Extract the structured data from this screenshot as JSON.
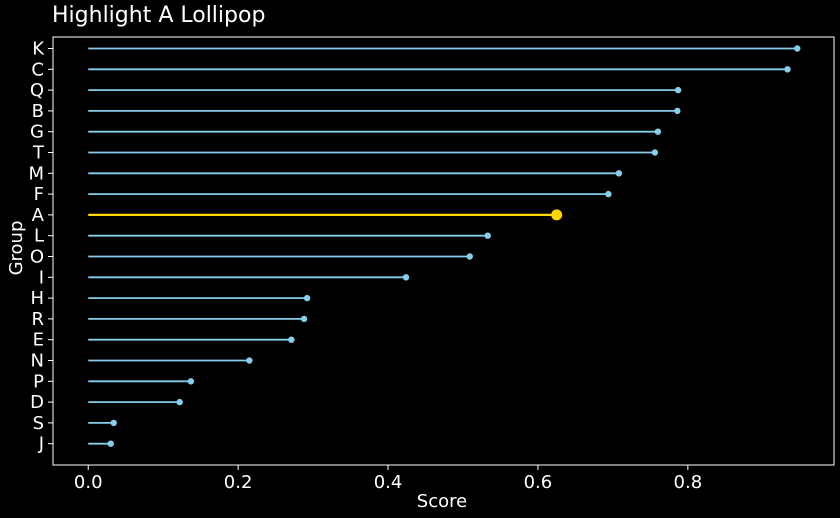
{
  "chart_data": {
    "type": "lollipop",
    "orientation": "horizontal",
    "title": "Highlight A Lollipop",
    "xlabel": "Score",
    "ylabel": "Group",
    "xlim": [
      -0.047,
      0.995
    ],
    "xticks": [
      0.0,
      0.2,
      0.4,
      0.6,
      0.8
    ],
    "xtick_labels": [
      "0.0",
      "0.2",
      "0.4",
      "0.6",
      "0.8"
    ],
    "grid": false,
    "categories": [
      "K",
      "C",
      "Q",
      "B",
      "G",
      "T",
      "M",
      "F",
      "A",
      "L",
      "O",
      "I",
      "H",
      "R",
      "E",
      "N",
      "P",
      "D",
      "S",
      "J"
    ],
    "values": [
      0.946,
      0.933,
      0.787,
      0.786,
      0.76,
      0.756,
      0.708,
      0.694,
      0.625,
      0.533,
      0.509,
      0.424,
      0.292,
      0.288,
      0.271,
      0.215,
      0.137,
      0.122,
      0.034,
      0.03
    ],
    "highlight": "A",
    "colors": {
      "background": "#000000",
      "axes": "#ffffff",
      "text": "#ffffff",
      "normal": "#87ceeb",
      "highlight": "#ffd700"
    }
  }
}
